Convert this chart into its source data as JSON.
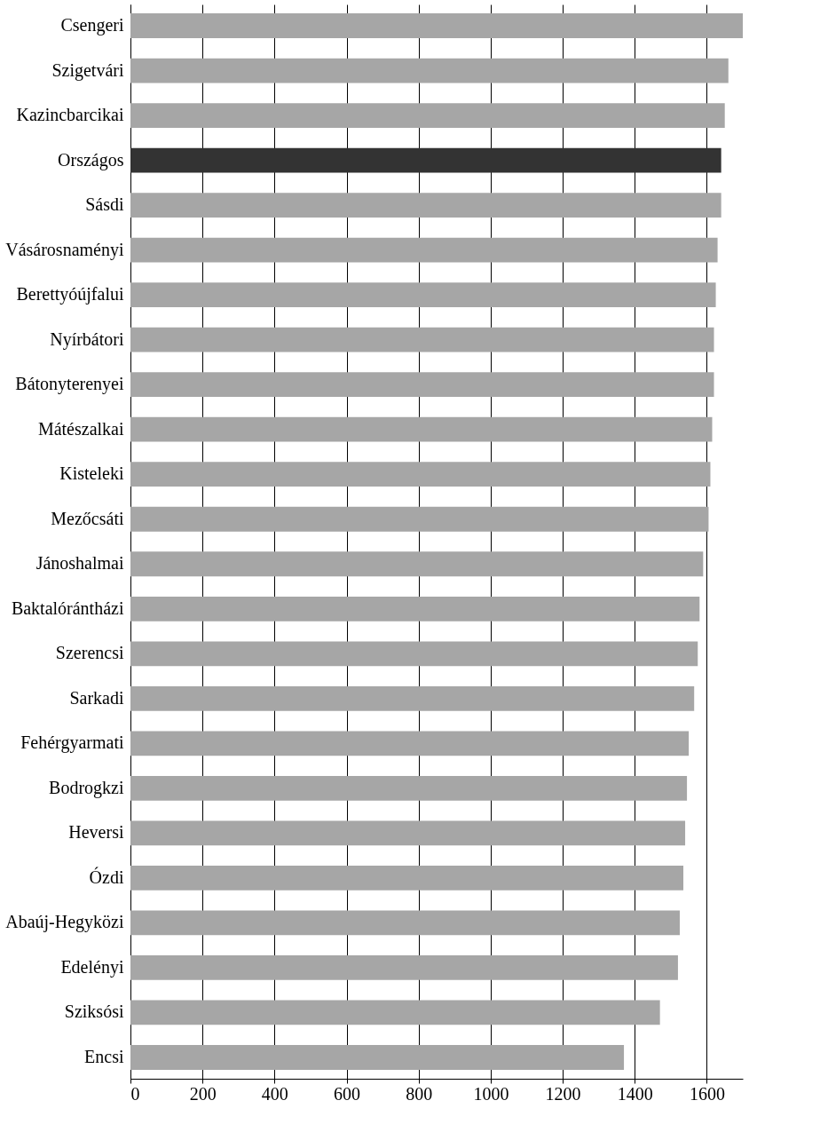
{
  "chart_data": {
    "type": "bar",
    "orientation": "horizontal",
    "categories": [
      "Csengeri",
      "Szigetvári",
      "Kazincbarcikai",
      "Országos",
      "Sásdi",
      "Vásárosnaményi",
      "Berettyóújfalui",
      "Nyírbátori",
      "Bátonyterenyei",
      "Mátészalkai",
      "Kisteleki",
      "Mezőcsáti",
      "Jánoshalmai",
      "Baktalórántházi",
      "Szerencsi",
      "Sarkadi",
      "Fehérgyarmati",
      "Bodrogkzi",
      "Heversi",
      "Ózdi",
      "Abaúj-Hegyközi",
      "Edelényi",
      "Sziksósi",
      "Encsi"
    ],
    "values": [
      1700,
      1660,
      1650,
      1640,
      1640,
      1630,
      1625,
      1620,
      1620,
      1615,
      1610,
      1605,
      1590,
      1580,
      1575,
      1565,
      1550,
      1545,
      1540,
      1535,
      1525,
      1520,
      1470,
      1370
    ],
    "colors": [
      "#a6a6a6",
      "#a6a6a6",
      "#a6a6a6",
      "#333333",
      "#a6a6a6",
      "#a6a6a6",
      "#a6a6a6",
      "#a6a6a6",
      "#a6a6a6",
      "#a6a6a6",
      "#a6a6a6",
      "#a6a6a6",
      "#a6a6a6",
      "#a6a6a6",
      "#a6a6a6",
      "#a6a6a6",
      "#a6a6a6",
      "#a6a6a6",
      "#a6a6a6",
      "#a6a6a6",
      "#a6a6a6",
      "#a6a6a6",
      "#a6a6a6",
      "#a6a6a6"
    ],
    "xlim": [
      0,
      1700
    ],
    "xticks": [
      0,
      200,
      400,
      600,
      800,
      1000,
      1200,
      1400,
      1600
    ],
    "grid": "x"
  }
}
